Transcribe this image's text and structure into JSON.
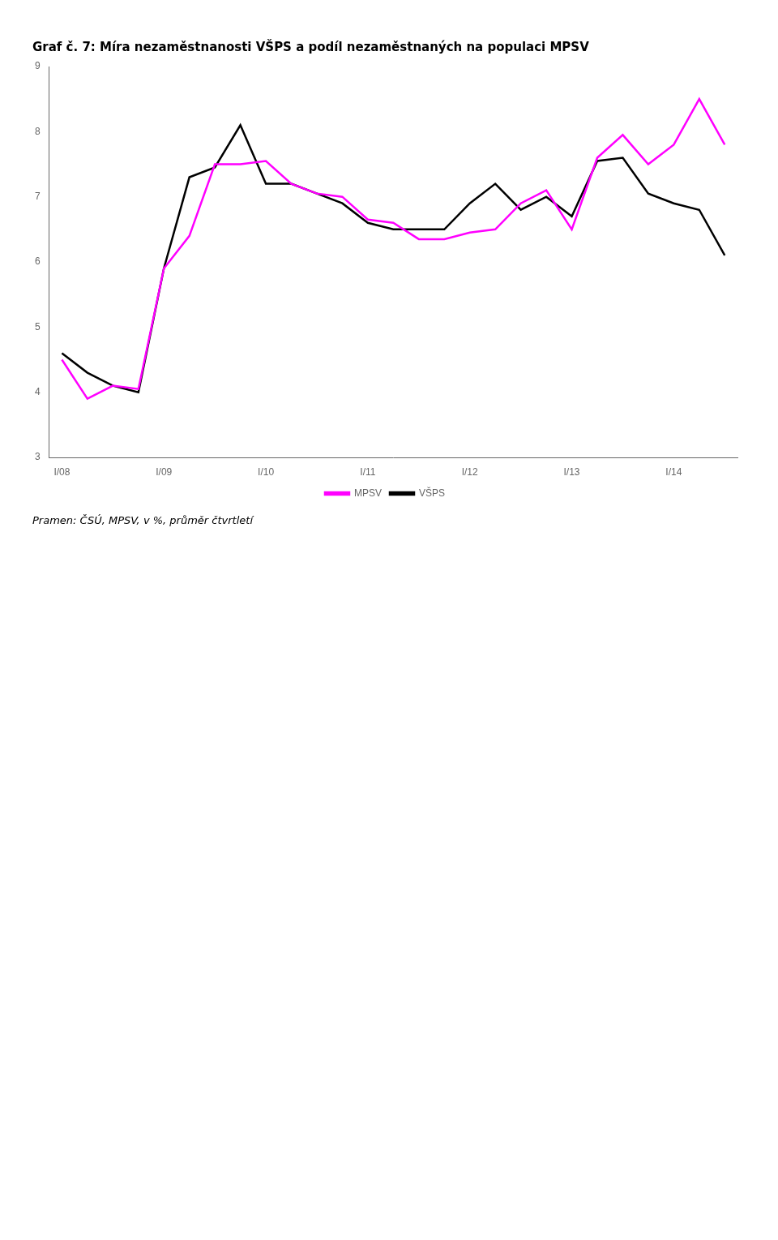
{
  "chart_data": {
    "type": "line",
    "title": "Graf č. 7: Míra nezaměstnanosti VŠPS a podíl nezaměstnaných na populaci MPSV",
    "subtitle": "Pramen: ČSÚ, MPSV, v %, průměr čtvrtletí",
    "categories": [
      "I/08",
      null,
      null,
      null,
      "I/09",
      null,
      null,
      null,
      "I/10",
      null,
      null,
      null,
      "I/11",
      null,
      null,
      null,
      "I/12",
      null,
      null,
      null,
      "I/13",
      null,
      null,
      null,
      "I/14",
      null,
      null
    ],
    "series": [
      {
        "name": "MPSV",
        "color": "#FF00FF",
        "values": [
          4.5,
          3.9,
          4.1,
          4.05,
          5.9,
          6.4,
          7.5,
          7.5,
          7.55,
          7.2,
          7.05,
          7.0,
          6.65,
          6.6,
          6.35,
          6.35,
          6.45,
          6.5,
          6.9,
          7.1,
          6.5,
          7.6,
          7.95,
          7.5,
          7.8,
          8.5,
          7.8
        ]
      },
      {
        "name": "VŠPS",
        "color": "#000000",
        "values": [
          4.6,
          4.3,
          4.1,
          4.0,
          5.9,
          7.3,
          7.45,
          8.1,
          7.2,
          7.2,
          7.05,
          6.9,
          6.6,
          6.5,
          6.5,
          6.5,
          6.9,
          7.2,
          6.8,
          7.0,
          6.7,
          7.55,
          7.6,
          7.05,
          6.9,
          6.8,
          6.1
        ]
      }
    ],
    "ylim": [
      3,
      9
    ],
    "yticks": [
      3,
      4,
      5,
      6,
      7,
      8,
      9
    ],
    "grid": false,
    "legend": "bottom"
  }
}
